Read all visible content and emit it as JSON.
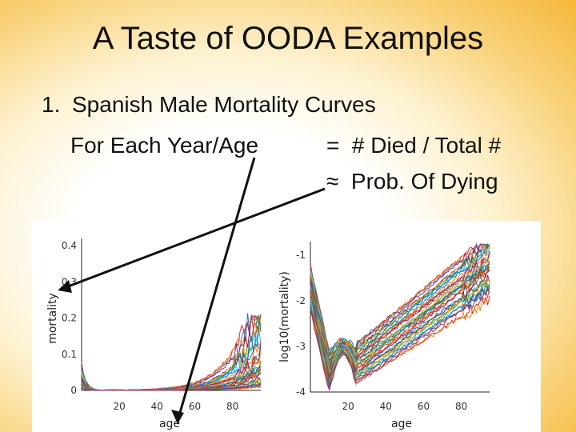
{
  "slide": {
    "title": "A Taste of OODA Examples",
    "item_number": "1.",
    "item_text": "Spanish Male Mortality Curves",
    "left_text": "For Each Year/Age",
    "eq_text": "=  # Died / Total #",
    "approx_text": "≈  Prob. Of Dying",
    "arrow_color": "#111111"
  },
  "chart_data": [
    {
      "type": "line",
      "xlabel": "age",
      "ylabel": "mortality",
      "x_ticks": [
        "20",
        "40",
        "60",
        "80"
      ],
      "y_ticks": [
        "0",
        "0.1",
        "0.2",
        "0.3",
        "0.4"
      ],
      "xlim": [
        0,
        95
      ],
      "ylim": [
        0,
        0.42
      ]
    },
    {
      "type": "line",
      "xlabel": "age",
      "ylabel": "log10(mortality)",
      "x_ticks": [
        "20",
        "40",
        "60",
        "80"
      ],
      "y_ticks": [
        "-1",
        "-2",
        "-3",
        "-4"
      ],
      "xlim": [
        0,
        95
      ],
      "ylim": [
        -4,
        -0.7
      ]
    }
  ]
}
